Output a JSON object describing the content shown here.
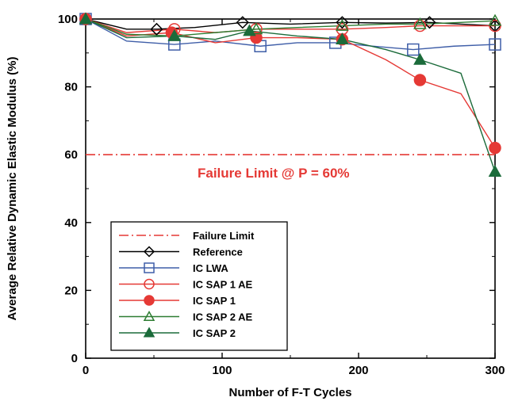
{
  "chart_data": {
    "type": "line",
    "xlabel": "Number of F-T Cycles",
    "ylabel": "Average Relative Dynamic Elastic Modulus (%)",
    "xlim": [
      0,
      300
    ],
    "ylim": [
      0,
      100
    ],
    "xticks": [
      0,
      100,
      200,
      300
    ],
    "yticks": [
      0,
      20,
      40,
      60,
      80,
      100
    ],
    "grid": false,
    "legend_position": "bottom-left",
    "annotation": "Failure Limit @ P = 60%",
    "failure_limit": {
      "name": "Failure Limit",
      "y": 60,
      "color": "#e53935",
      "style": "dash-dot"
    },
    "series": [
      {
        "name": "Reference",
        "color": "#000000",
        "marker": "diamond-open",
        "x": [
          0,
          52,
          115,
          188,
          252,
          300
        ],
        "y": [
          100,
          97,
          99,
          99,
          99,
          98
        ],
        "curve_x": [
          0,
          30,
          52,
          80,
          115,
          150,
          188,
          220,
          252,
          275,
          300
        ],
        "curve_y": [
          100,
          97,
          97,
          97.5,
          99,
          98.5,
          99,
          98.8,
          99,
          98.5,
          98
        ]
      },
      {
        "name": "IC LWA",
        "color": "#3f5ea8",
        "marker": "square-open",
        "x": [
          0,
          65,
          128,
          183,
          240,
          300
        ],
        "y": [
          100,
          92.5,
          92,
          93,
          91,
          92.5
        ],
        "curve_x": [
          0,
          30,
          65,
          95,
          128,
          155,
          183,
          210,
          240,
          270,
          300
        ],
        "curve_y": [
          100,
          93.5,
          92.5,
          93.5,
          92,
          93,
          93,
          92,
          91,
          92,
          92.5
        ]
      },
      {
        "name": "IC SAP 1 AE",
        "color": "#e53935",
        "marker": "circle-open",
        "x": [
          0,
          65,
          125,
          188,
          245,
          300
        ],
        "y": [
          100,
          97,
          97,
          97,
          98,
          98
        ],
        "curve_x": [
          0,
          30,
          65,
          95,
          125,
          155,
          188,
          220,
          245,
          275,
          300
        ],
        "curve_y": [
          100,
          96,
          97,
          96,
          97,
          97,
          97,
          97.5,
          98,
          98,
          98
        ]
      },
      {
        "name": "IC SAP 1",
        "color": "#e53935",
        "marker": "circle-filled",
        "x": [
          0,
          63,
          125,
          188,
          245,
          300
        ],
        "y": [
          100,
          96,
          94.5,
          94,
          82,
          62
        ],
        "curve_x": [
          0,
          30,
          63,
          95,
          125,
          155,
          188,
          220,
          245,
          275,
          300
        ],
        "curve_y": [
          100,
          95,
          96,
          93,
          94.5,
          94.5,
          94,
          88,
          82,
          78,
          62
        ]
      },
      {
        "name": "IC SAP 2 AE",
        "color": "#2e7d32",
        "marker": "triangle-open",
        "x": [
          0,
          65,
          125,
          188,
          245,
          300
        ],
        "y": [
          100,
          95,
          97,
          98,
          98.5,
          99.5
        ],
        "curve_x": [
          0,
          30,
          65,
          95,
          125,
          155,
          188,
          220,
          245,
          275,
          300
        ],
        "curve_y": [
          100,
          95.5,
          95,
          96,
          97,
          97.5,
          98,
          98.5,
          98.5,
          99,
          99.5
        ]
      },
      {
        "name": "IC SAP 2",
        "color": "#1b6b3a",
        "marker": "triangle-filled",
        "x": [
          0,
          65,
          120,
          188,
          245,
          300
        ],
        "y": [
          100,
          95,
          96.5,
          94,
          88,
          55
        ],
        "curve_x": [
          0,
          30,
          65,
          95,
          120,
          155,
          188,
          220,
          245,
          275,
          300
        ],
        "curve_y": [
          100,
          94.5,
          95,
          94,
          96.5,
          95,
          94,
          91,
          88,
          84,
          55
        ]
      }
    ]
  }
}
